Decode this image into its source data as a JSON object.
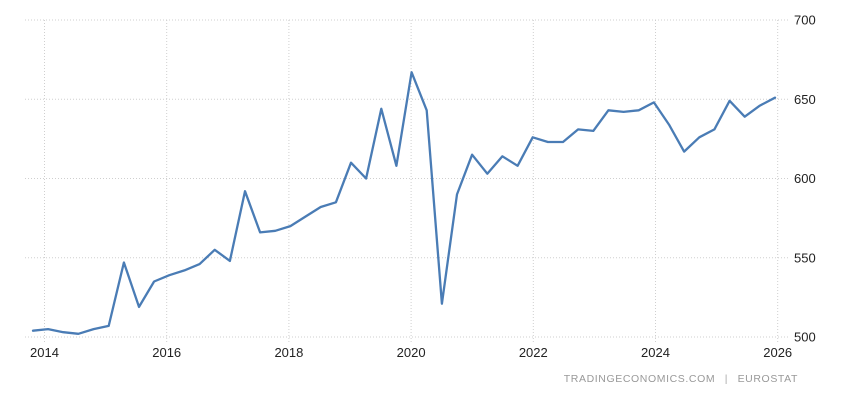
{
  "attribution": {
    "provider": "TRADINGECONOMICS.COM",
    "separator": "|",
    "source": "EUROSTAT"
  },
  "colors": {
    "line": "#4a7cb5",
    "grid": "#cfcfcf",
    "tick_text": "#222222",
    "attribution_text": "#999999",
    "background": "#ffffff"
  },
  "chart_data": {
    "type": "line",
    "title": "",
    "legend": "none",
    "grid": "dotted",
    "y_axis_side": "right",
    "x_tick_labels": [
      "2014",
      "2016",
      "2018",
      "2020",
      "2022",
      "2024",
      "2026"
    ],
    "y_ticks": [
      700,
      650,
      600,
      550,
      500
    ],
    "ylim": [
      500,
      700
    ],
    "xlabel": "",
    "ylabel": "",
    "periods": [
      "2013 Q3",
      "2013 Q4",
      "2014 Q1",
      "2014 Q2",
      "2014 Q3",
      "2014 Q4",
      "2015 Q1",
      "2015 Q2",
      "2015 Q3",
      "2015 Q4",
      "2016 Q1",
      "2016 Q2",
      "2016 Q3",
      "2016 Q4",
      "2017 Q1",
      "2017 Q2",
      "2017 Q3",
      "2017 Q4",
      "2018 Q1",
      "2018 Q2",
      "2018 Q3",
      "2018 Q4",
      "2019 Q1",
      "2019 Q2",
      "2019 Q3",
      "2019 Q4",
      "2020 Q1",
      "2020 Q2",
      "2020 Q3",
      "2020 Q4",
      "2021 Q1",
      "2021 Q2",
      "2021 Q3",
      "2021 Q4",
      "2022 Q1",
      "2022 Q2",
      "2022 Q3",
      "2022 Q4",
      "2023 Q1",
      "2023 Q2",
      "2023 Q3",
      "2023 Q4",
      "2024 Q1",
      "2024 Q2",
      "2024 Q3",
      "2024 Q4",
      "2025 Q1",
      "2025 Q2",
      "2025 Q3",
      "2025 Q4"
    ],
    "series": [
      {
        "name": "Value",
        "color": "#4a7cb5",
        "values": [
          504,
          505,
          503,
          502,
          505,
          507,
          547,
          519,
          535,
          539,
          542,
          546,
          555,
          548,
          592,
          566,
          567,
          570,
          576,
          582,
          585,
          610,
          600,
          644,
          608,
          667,
          643,
          521,
          590,
          615,
          603,
          614,
          608,
          626,
          623,
          623,
          631,
          630,
          643,
          642,
          643,
          648,
          634,
          617,
          626,
          631,
          649,
          639,
          646,
          651
        ]
      }
    ]
  }
}
